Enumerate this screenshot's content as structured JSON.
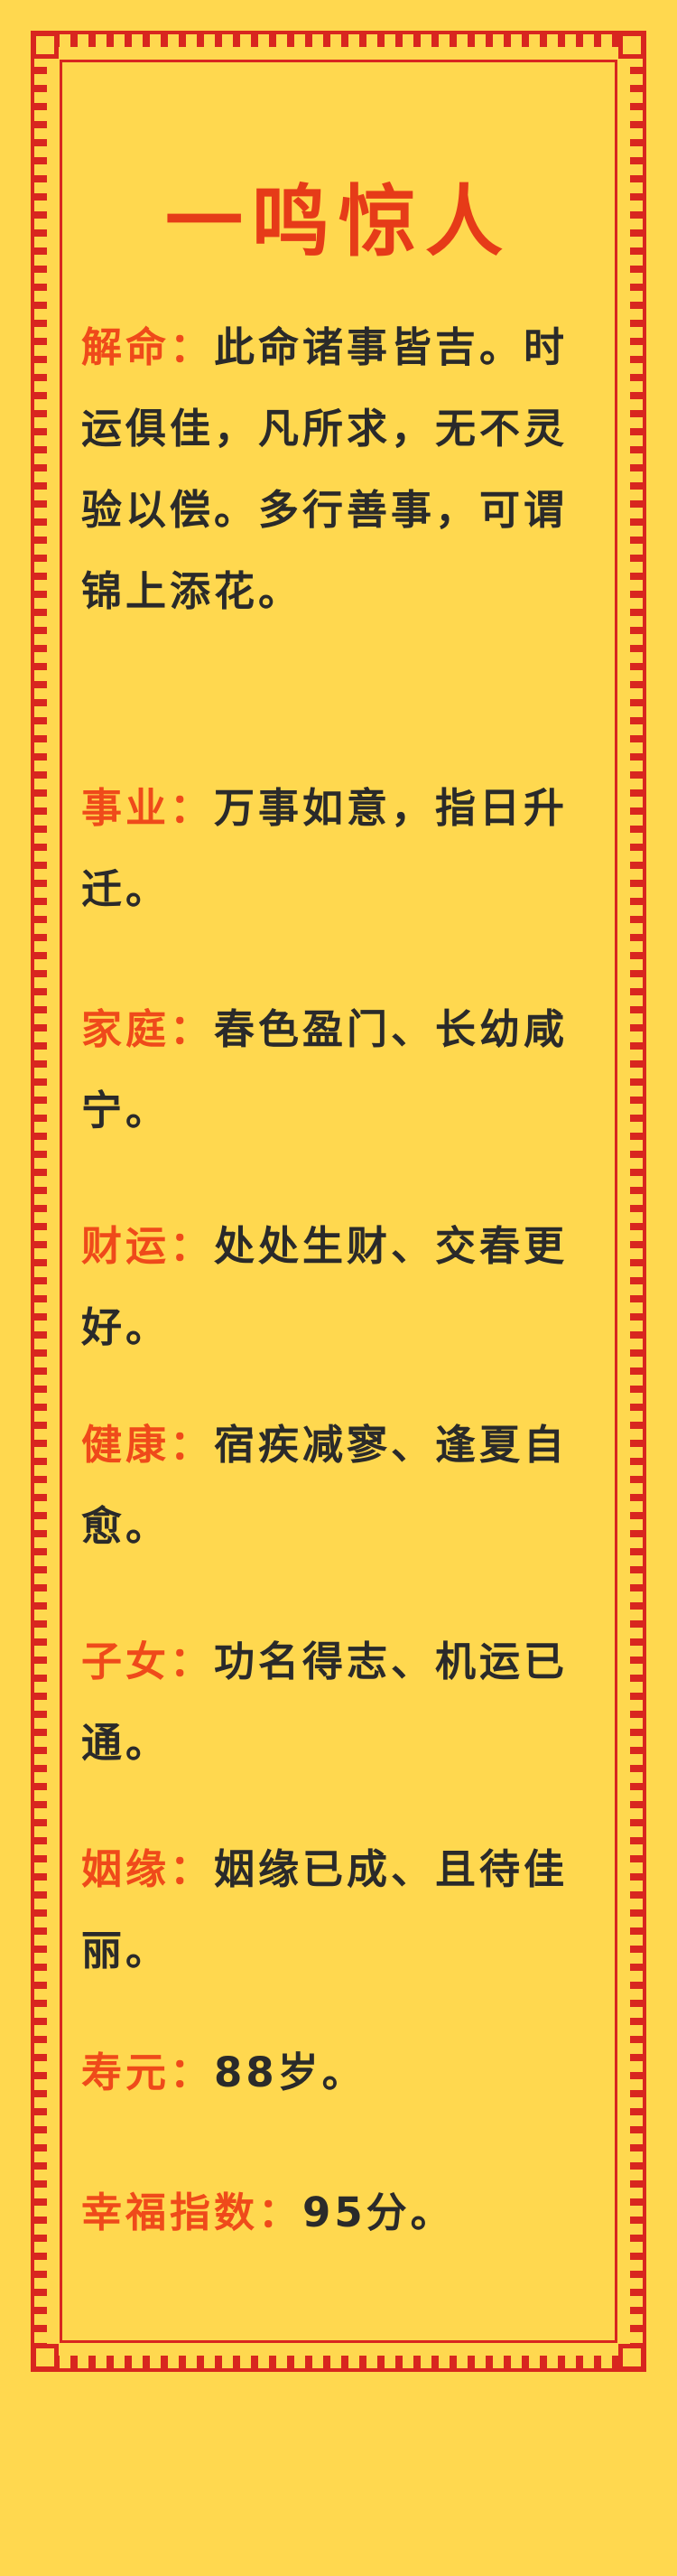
{
  "title": "一鸣惊人",
  "sections": [
    {
      "label": "解命：",
      "text": "此命诸事皆吉。时运俱佳，凡所求，无不灵验以偿。多行善事，可谓锦上添花。"
    },
    {
      "label": "事业：",
      "text": "万事如意，指日升迁。"
    },
    {
      "label": "家庭：",
      "text": "春色盈门、长幼咸宁。"
    },
    {
      "label": "财运：",
      "text": "处处生财、交春更好。"
    },
    {
      "label": "健康：",
      "text": "宿疾减寥、逢夏自愈。"
    },
    {
      "label": "子女：",
      "text": "功名得志、机运已通。"
    },
    {
      "label": "姻缘：",
      "text": "姻缘已成、且待佳丽。"
    },
    {
      "label": "寿元：",
      "text": "88岁。"
    },
    {
      "label": "幸福指数：",
      "text": "95分。"
    }
  ],
  "colors": {
    "background": "#ffd84f",
    "border": "#d8261f",
    "label": "#ef4a1a",
    "text": "#2a2a2a"
  }
}
